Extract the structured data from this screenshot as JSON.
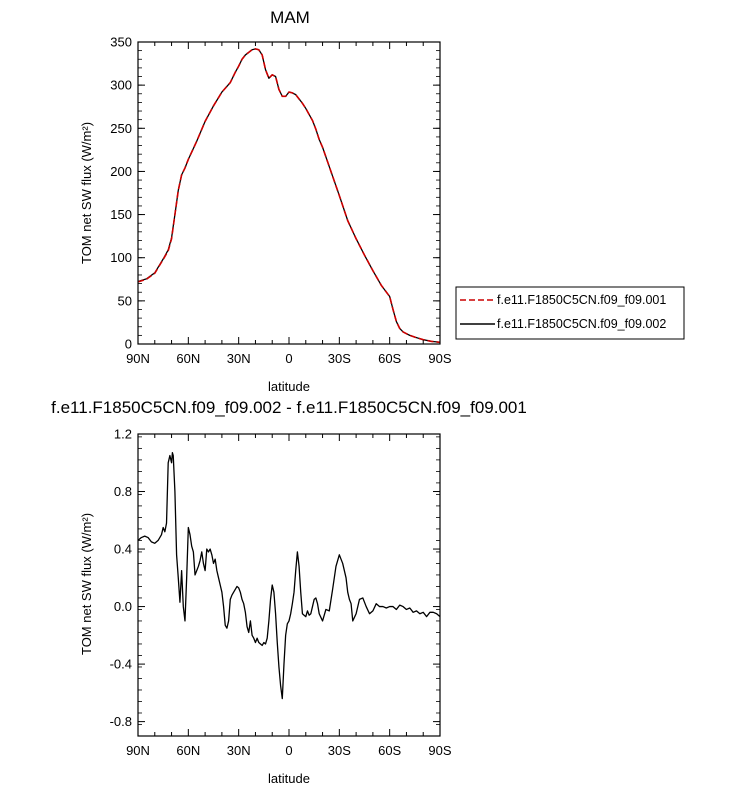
{
  "chart_data": [
    {
      "type": "line",
      "title": "MAM",
      "xlabel": "latitude",
      "ylabel": "TOM net SW flux (W/m²)",
      "xlim": [
        90,
        -90
      ],
      "ylim": [
        0,
        350
      ],
      "x_ticks": [
        90,
        60,
        30,
        0,
        -30,
        -60,
        -90
      ],
      "x_tick_labels": [
        "90N",
        "60N",
        "30N",
        "0",
        "30S",
        "60S",
        "90S"
      ],
      "y_ticks": [
        0,
        50,
        100,
        150,
        200,
        250,
        300,
        350
      ],
      "y_tick_labels": [
        "0",
        "50",
        "100",
        "150",
        "200",
        "250",
        "300",
        "350"
      ],
      "grid": false,
      "legend": "right",
      "series": [
        {
          "name": "f.e11.F1850C5CN.f09_f09.001",
          "color": "#cc0000",
          "style": "dashed",
          "x": [
            90,
            85,
            80,
            75,
            72,
            70,
            68,
            66,
            64,
            62,
            60,
            55,
            50,
            45,
            40,
            35,
            32,
            30,
            28,
            26,
            24,
            22,
            20,
            18,
            16,
            14,
            12,
            10,
            8,
            6,
            4,
            2,
            0,
            -2,
            -4,
            -6,
            -8,
            -10,
            -12,
            -14,
            -16,
            -18,
            -20,
            -25,
            -30,
            -35,
            -40,
            -45,
            -50,
            -55,
            -60,
            -62,
            -64,
            -66,
            -68,
            -70,
            -72,
            -75,
            -80,
            -85,
            -90
          ],
          "y": [
            72,
            75,
            82,
            98,
            108,
            122,
            150,
            178,
            196,
            204,
            214,
            235,
            258,
            276,
            292,
            303,
            315,
            322,
            330,
            335,
            338,
            341,
            342,
            341,
            335,
            318,
            308,
            312,
            310,
            295,
            287,
            287,
            292,
            291,
            289,
            284,
            279,
            273,
            266,
            259,
            249,
            237,
            228,
            200,
            172,
            143,
            122,
            103,
            85,
            68,
            55,
            40,
            26,
            18,
            14,
            12,
            10,
            8,
            5,
            3,
            2
          ]
        },
        {
          "name": "f.e11.F1850C5CN.f09_f09.002",
          "color": "#000000",
          "style": "solid",
          "x": [
            90,
            85,
            80,
            75,
            72,
            70,
            68,
            66,
            64,
            62,
            60,
            55,
            50,
            45,
            40,
            35,
            32,
            30,
            28,
            26,
            24,
            22,
            20,
            18,
            16,
            14,
            12,
            10,
            8,
            6,
            4,
            2,
            0,
            -2,
            -4,
            -6,
            -8,
            -10,
            -12,
            -14,
            -16,
            -18,
            -20,
            -25,
            -30,
            -35,
            -40,
            -45,
            -50,
            -55,
            -60,
            -62,
            -64,
            -66,
            -68,
            -70,
            -72,
            -75,
            -80,
            -85,
            -90
          ],
          "y": [
            72.5,
            75.5,
            82.5,
            98.5,
            109,
            123,
            150,
            178,
            196,
            204,
            214,
            235,
            258,
            276,
            292,
            303,
            315,
            322,
            330,
            335,
            338,
            341,
            342,
            341,
            335,
            318,
            308,
            312,
            310,
            295,
            287,
            287,
            292,
            291,
            289,
            284,
            279,
            273,
            266,
            259,
            249,
            237,
            228,
            200,
            172,
            143,
            122,
            103,
            85,
            68,
            55,
            40,
            26,
            18,
            14,
            12,
            10,
            8,
            5,
            3,
            2
          ]
        }
      ]
    },
    {
      "type": "line",
      "title": "f.e11.F1850C5CN.f09_f09.002 - f.e11.F1850C5CN.f09_f09.001",
      "xlabel": "latitude",
      "ylabel": "TOM net SW flux (W/m²)",
      "xlim": [
        90,
        -90
      ],
      "ylim": [
        -0.9,
        1.2
      ],
      "x_ticks": [
        90,
        60,
        30,
        0,
        -30,
        -60,
        -90
      ],
      "x_tick_labels": [
        "90N",
        "60N",
        "30N",
        "0",
        "30S",
        "60S",
        "90S"
      ],
      "y_ticks": [
        -0.8,
        -0.4,
        0.0,
        0.4,
        0.8,
        1.2
      ],
      "y_tick_labels": [
        "-0.8",
        "-0.4",
        "0.0",
        "0.4",
        "0.8",
        "1.2"
      ],
      "grid": false,
      "series": [
        {
          "color": "#000000",
          "style": "solid",
          "x": [
            90,
            88,
            86,
            84,
            82,
            80,
            78,
            76,
            75,
            74,
            73,
            72,
            71,
            70,
            69.5,
            69,
            68,
            67,
            66,
            65,
            64,
            63,
            62,
            61,
            60,
            59,
            58,
            57,
            56,
            55,
            54,
            53,
            52,
            51,
            50,
            49,
            48,
            47,
            46,
            45,
            44,
            43,
            42,
            41,
            40,
            39,
            38,
            37,
            36,
            35,
            34,
            33,
            32,
            31,
            30,
            29,
            28,
            27,
            26,
            25,
            24,
            23,
            22,
            21,
            20,
            19,
            18,
            17,
            16,
            15,
            14,
            13,
            12,
            11,
            10,
            9,
            8,
            7,
            6,
            5,
            4,
            3,
            2,
            1,
            0,
            -1,
            -2,
            -3,
            -4,
            -5,
            -6,
            -7,
            -8,
            -9,
            -10,
            -11,
            -12,
            -13,
            -14,
            -15,
            -16,
            -17,
            -18,
            -20,
            -22,
            -24,
            -26,
            -28,
            -30,
            -32,
            -34,
            -35,
            -36,
            -37,
            -38,
            -40,
            -42,
            -44,
            -46,
            -48,
            -50,
            -52,
            -54,
            -56,
            -58,
            -60,
            -62,
            -64,
            -66,
            -68,
            -70,
            -72,
            -74,
            -76,
            -78,
            -80,
            -82,
            -84,
            -86,
            -88,
            -90
          ],
          "y": [
            0.46,
            0.48,
            0.49,
            0.48,
            0.45,
            0.44,
            0.46,
            0.5,
            0.55,
            0.52,
            0.58,
            1.0,
            1.05,
            1.0,
            1.07,
            1.05,
            0.8,
            0.36,
            0.2,
            0.03,
            0.25,
            0.0,
            -0.1,
            0.2,
            0.55,
            0.5,
            0.42,
            0.38,
            0.22,
            0.25,
            0.28,
            0.32,
            0.38,
            0.3,
            0.25,
            0.4,
            0.38,
            0.4,
            0.36,
            0.3,
            0.33,
            0.25,
            0.2,
            0.15,
            0.1,
            0.0,
            -0.13,
            -0.15,
            -0.1,
            0.05,
            0.08,
            0.1,
            0.12,
            0.14,
            0.13,
            0.1,
            0.05,
            0.02,
            -0.04,
            -0.14,
            -0.18,
            -0.1,
            -0.2,
            -0.22,
            -0.25,
            -0.22,
            -0.25,
            -0.26,
            -0.27,
            -0.25,
            -0.26,
            -0.22,
            -0.1,
            0.05,
            0.15,
            0.1,
            -0.05,
            -0.25,
            -0.42,
            -0.55,
            -0.64,
            -0.4,
            -0.2,
            -0.12,
            -0.1,
            -0.05,
            0.02,
            0.1,
            0.25,
            0.38,
            0.28,
            0.1,
            -0.05,
            -0.06,
            -0.07,
            -0.03,
            -0.06,
            -0.05,
            0.0,
            0.05,
            0.06,
            0.02,
            -0.05,
            -0.1,
            -0.02,
            -0.03,
            0.12,
            0.28,
            0.36,
            0.3,
            0.2,
            0.1,
            0.05,
            0.02,
            -0.1,
            -0.05,
            0.05,
            0.06,
            0.0,
            -0.05,
            -0.03,
            0.02,
            0.0,
            0.0,
            -0.01,
            0.0,
            0.0,
            -0.02,
            0.01,
            0.0,
            -0.02,
            -0.01,
            -0.04,
            -0.03,
            -0.05,
            -0.04,
            -0.07,
            -0.04,
            -0.04,
            -0.05,
            -0.07
          ]
        }
      ]
    }
  ]
}
